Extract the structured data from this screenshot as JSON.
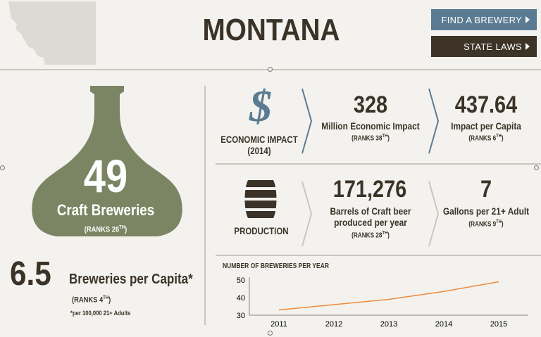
{
  "header": {
    "state_name": "MONTANA",
    "find_button": "FIND A BREWERY",
    "laws_button": "STATE LAWS",
    "colors": {
      "find": "#5b7b92",
      "laws": "#3d3326",
      "bottle": "#7b8563",
      "accent": "#5b7b92"
    }
  },
  "breweries": {
    "count": "49",
    "label": "Craft Breweries",
    "rank_prefix": "(RANKS 26",
    "rank_suffix": "TH",
    "rank_close": ")"
  },
  "per_capita": {
    "value": "6.5",
    "label": "Breweries per Capita*",
    "rank_prefix": "(RANKS 4",
    "rank_suffix": "TH",
    "rank_close": ")",
    "note": "*per 100,000 21+ Adults"
  },
  "economic": {
    "icon": "dollar-icon",
    "label_line1": "ECONOMIC IMPACT",
    "label_line2": "(2014)",
    "impact_value": "328",
    "impact_label": "Million Economic Impact",
    "impact_rank_prefix": "(RANKS 38",
    "impact_rank_suffix": "TH",
    "impact_rank_close": ")",
    "capita_value": "437.64",
    "capita_label": "Impact per Capita",
    "capita_rank_prefix": "(RANKS 6",
    "capita_rank_suffix": "TH",
    "capita_rank_close": ")"
  },
  "production": {
    "icon": "barrel-icon",
    "label": "PRODUCTION",
    "barrels_value": "171,276",
    "barrels_label_line1": "Barrels of Craft beer",
    "barrels_label_line2": "produced per year",
    "barrels_rank_prefix": "(RANKS 28",
    "barrels_rank_suffix": "TH",
    "barrels_rank_close": ")",
    "gallons_value": "7",
    "gallons_label": "Gallons per 21+ Adult",
    "gallons_rank_prefix": "(RANKS 9",
    "gallons_rank_suffix": "TH",
    "gallons_rank_close": ")"
  },
  "chart_data": {
    "type": "line",
    "title": "NUMBER OF BREWERIES PER YEAR",
    "x": [
      "2011",
      "2012",
      "2013",
      "2014",
      "2015"
    ],
    "series": [
      {
        "values": [
          33,
          36,
          39,
          43.5,
          49
        ]
      }
    ],
    "ylim": [
      30,
      50
    ],
    "yticks": [
      "30",
      "40",
      "50"
    ],
    "grid": false,
    "line_color": "#f08a3c"
  }
}
